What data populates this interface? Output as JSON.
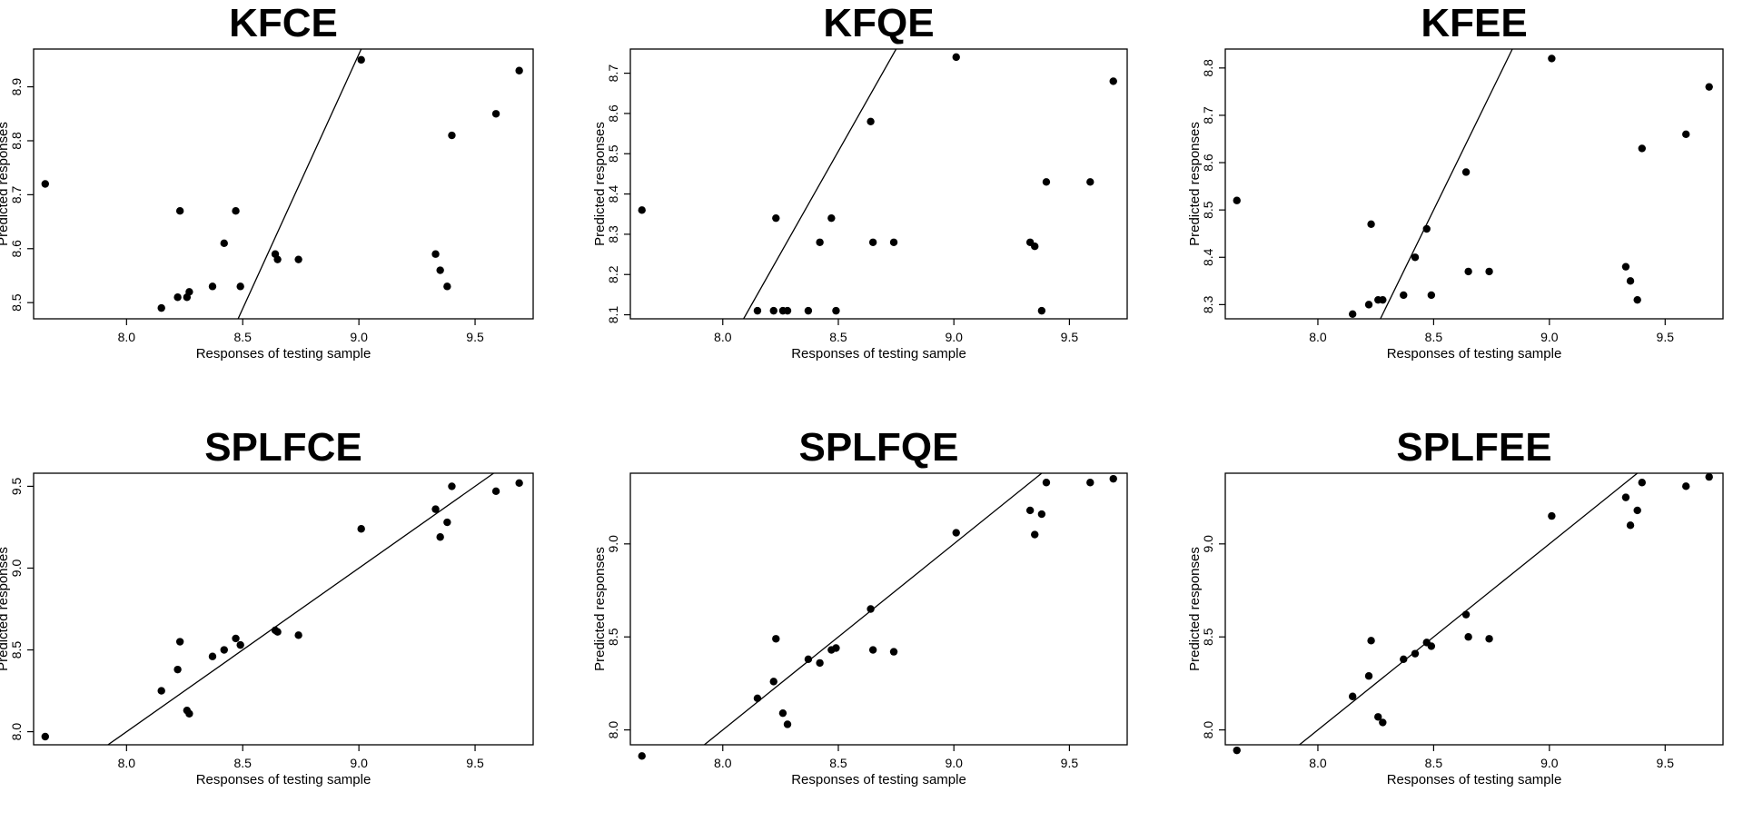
{
  "chart_data": [
    {
      "type": "scatter",
      "title": "KFCE",
      "xlabel": "Responses of testing sample",
      "ylabel": "Predicted responses",
      "xlim": [
        7.6,
        9.75
      ],
      "ylim": [
        8.47,
        8.97
      ],
      "xticks": [
        8.0,
        8.5,
        9.0,
        9.5
      ],
      "xtick_labels": [
        "8.0",
        "8.5",
        "9.0",
        "9.5"
      ],
      "yticks": [
        8.5,
        8.6,
        8.7,
        8.8,
        8.9
      ],
      "ytick_labels": [
        "8.5",
        "8.6",
        "8.7",
        "8.8",
        "8.9"
      ],
      "x": [
        7.65,
        8.15,
        8.22,
        8.23,
        8.26,
        8.27,
        8.37,
        8.42,
        8.47,
        8.49,
        8.64,
        8.65,
        8.74,
        9.01,
        9.33,
        9.35,
        9.38,
        9.4,
        9.59,
        9.69
      ],
      "y": [
        8.72,
        8.49,
        8.51,
        8.67,
        8.51,
        8.52,
        8.53,
        8.61,
        8.67,
        8.53,
        8.59,
        8.58,
        8.58,
        8.95,
        8.59,
        8.56,
        8.53,
        8.81,
        8.85,
        8.93
      ],
      "fit_line": {
        "x": [
          8.48,
          9.01
        ],
        "y": [
          8.47,
          8.97
        ]
      }
    },
    {
      "type": "scatter",
      "title": "KFQE",
      "xlabel": "Responses of testing sample",
      "ylabel": "Predicted responses",
      "xlim": [
        7.6,
        9.75
      ],
      "ylim": [
        8.09,
        8.76
      ],
      "xticks": [
        8.0,
        8.5,
        9.0,
        9.5
      ],
      "xtick_labels": [
        "8.0",
        "8.5",
        "9.0",
        "9.5"
      ],
      "yticks": [
        8.1,
        8.2,
        8.3,
        8.4,
        8.5,
        8.6,
        8.7
      ],
      "ytick_labels": [
        "8.1",
        "8.2",
        "8.3",
        "8.4",
        "8.5",
        "8.6",
        "8.7"
      ],
      "x": [
        7.65,
        8.15,
        8.22,
        8.23,
        8.26,
        8.28,
        8.37,
        8.42,
        8.47,
        8.49,
        8.64,
        8.65,
        8.74,
        9.01,
        9.33,
        9.35,
        9.38,
        9.4,
        9.59,
        9.69
      ],
      "y": [
        8.36,
        8.11,
        8.11,
        8.34,
        8.11,
        8.11,
        8.11,
        8.28,
        8.34,
        8.11,
        8.58,
        8.28,
        8.28,
        8.74,
        8.28,
        8.27,
        8.11,
        8.43,
        8.43,
        8.68
      ],
      "fit_line": {
        "x": [
          8.09,
          8.75
        ],
        "y": [
          8.09,
          8.76
        ]
      }
    },
    {
      "type": "scatter",
      "title": "KFEE",
      "xlabel": "Responses of testing sample",
      "ylabel": "Predicted responses",
      "xlim": [
        7.6,
        9.75
      ],
      "ylim": [
        8.27,
        8.84
      ],
      "xticks": [
        8.0,
        8.5,
        9.0,
        9.5
      ],
      "xtick_labels": [
        "8.0",
        "8.5",
        "9.0",
        "9.5"
      ],
      "yticks": [
        8.3,
        8.4,
        8.5,
        8.6,
        8.7,
        8.8
      ],
      "ytick_labels": [
        "8.3",
        "8.4",
        "8.5",
        "8.6",
        "8.7",
        "8.8"
      ],
      "x": [
        7.65,
        8.15,
        8.22,
        8.23,
        8.26,
        8.28,
        8.37,
        8.42,
        8.47,
        8.49,
        8.64,
        8.65,
        8.74,
        9.01,
        9.33,
        9.35,
        9.38,
        9.4,
        9.59,
        9.69
      ],
      "y": [
        8.52,
        8.28,
        8.3,
        8.47,
        8.31,
        8.31,
        8.32,
        8.4,
        8.46,
        8.32,
        8.58,
        8.37,
        8.37,
        8.82,
        8.38,
        8.35,
        8.31,
        8.63,
        8.66,
        8.76
      ],
      "fit_line": {
        "x": [
          8.27,
          8.84
        ],
        "y": [
          8.27,
          8.84
        ]
      }
    },
    {
      "type": "scatter",
      "title": "SPLFCE",
      "xlabel": "Responses of testing sample",
      "ylabel": "Predicted responses",
      "xlim": [
        7.6,
        9.75
      ],
      "ylim": [
        7.92,
        9.58
      ],
      "xticks": [
        8.0,
        8.5,
        9.0,
        9.5
      ],
      "xtick_labels": [
        "8.0",
        "8.5",
        "9.0",
        "9.5"
      ],
      "yticks": [
        8.0,
        8.5,
        9.0,
        9.5
      ],
      "ytick_labels": [
        "8.0",
        "8.5",
        "9.0",
        "9.5"
      ],
      "x": [
        7.65,
        8.15,
        8.22,
        8.23,
        8.26,
        8.27,
        8.37,
        8.42,
        8.47,
        8.49,
        8.64,
        8.65,
        8.74,
        9.01,
        9.33,
        9.35,
        9.38,
        9.4,
        9.59,
        9.69
      ],
      "y": [
        7.97,
        8.25,
        8.38,
        8.55,
        8.13,
        8.11,
        8.46,
        8.5,
        8.57,
        8.53,
        8.62,
        8.61,
        8.59,
        9.24,
        9.36,
        9.19,
        9.28,
        9.5,
        9.47,
        9.52
      ],
      "fit_line": {
        "x": [
          7.92,
          9.58
        ],
        "y": [
          7.92,
          9.58
        ]
      }
    },
    {
      "type": "scatter",
      "title": "SPLFQE",
      "xlabel": "Responses of testing sample",
      "ylabel": "Predicted responses",
      "xlim": [
        7.6,
        9.75
      ],
      "ylim": [
        7.92,
        9.38
      ],
      "xticks": [
        8.0,
        8.5,
        9.0,
        9.5
      ],
      "xtick_labels": [
        "8.0",
        "8.5",
        "9.0",
        "9.5"
      ],
      "yticks": [
        8.0,
        8.5,
        9.0
      ],
      "ytick_labels": [
        "8.0",
        "8.5",
        "9.0"
      ],
      "x": [
        7.65,
        8.15,
        8.22,
        8.23,
        8.26,
        8.28,
        8.37,
        8.42,
        8.47,
        8.49,
        8.64,
        8.65,
        8.74,
        9.01,
        9.33,
        9.35,
        9.38,
        9.4,
        9.59,
        9.69
      ],
      "y": [
        7.86,
        8.17,
        8.26,
        8.49,
        8.09,
        8.03,
        8.38,
        8.36,
        8.43,
        8.44,
        8.65,
        8.43,
        8.42,
        9.06,
        9.18,
        9.05,
        9.16,
        9.33,
        9.33,
        9.35
      ],
      "fit_line": {
        "x": [
          7.92,
          9.38
        ],
        "y": [
          7.92,
          9.38
        ]
      }
    },
    {
      "type": "scatter",
      "title": "SPLFEE",
      "xlabel": "Responses of testing sample",
      "ylabel": "Predicted responses",
      "xlim": [
        7.6,
        9.75
      ],
      "ylim": [
        7.92,
        9.38
      ],
      "xticks": [
        8.0,
        8.5,
        9.0,
        9.5
      ],
      "xtick_labels": [
        "8.0",
        "8.5",
        "9.0",
        "9.5"
      ],
      "yticks": [
        8.0,
        8.5,
        9.0
      ],
      "ytick_labels": [
        "8.0",
        "8.5",
        "9.0"
      ],
      "x": [
        7.65,
        8.15,
        8.22,
        8.23,
        8.26,
        8.28,
        8.37,
        8.42,
        8.47,
        8.49,
        8.64,
        8.65,
        8.74,
        9.01,
        9.33,
        9.35,
        9.38,
        9.4,
        9.59,
        9.69
      ],
      "y": [
        7.89,
        8.18,
        8.29,
        8.48,
        8.07,
        8.04,
        8.38,
        8.41,
        8.47,
        8.45,
        8.62,
        8.5,
        8.49,
        9.15,
        9.25,
        9.1,
        9.18,
        9.33,
        9.31,
        9.36
      ],
      "fit_line": {
        "x": [
          7.92,
          9.38
        ],
        "y": [
          7.92,
          9.38
        ]
      }
    }
  ]
}
